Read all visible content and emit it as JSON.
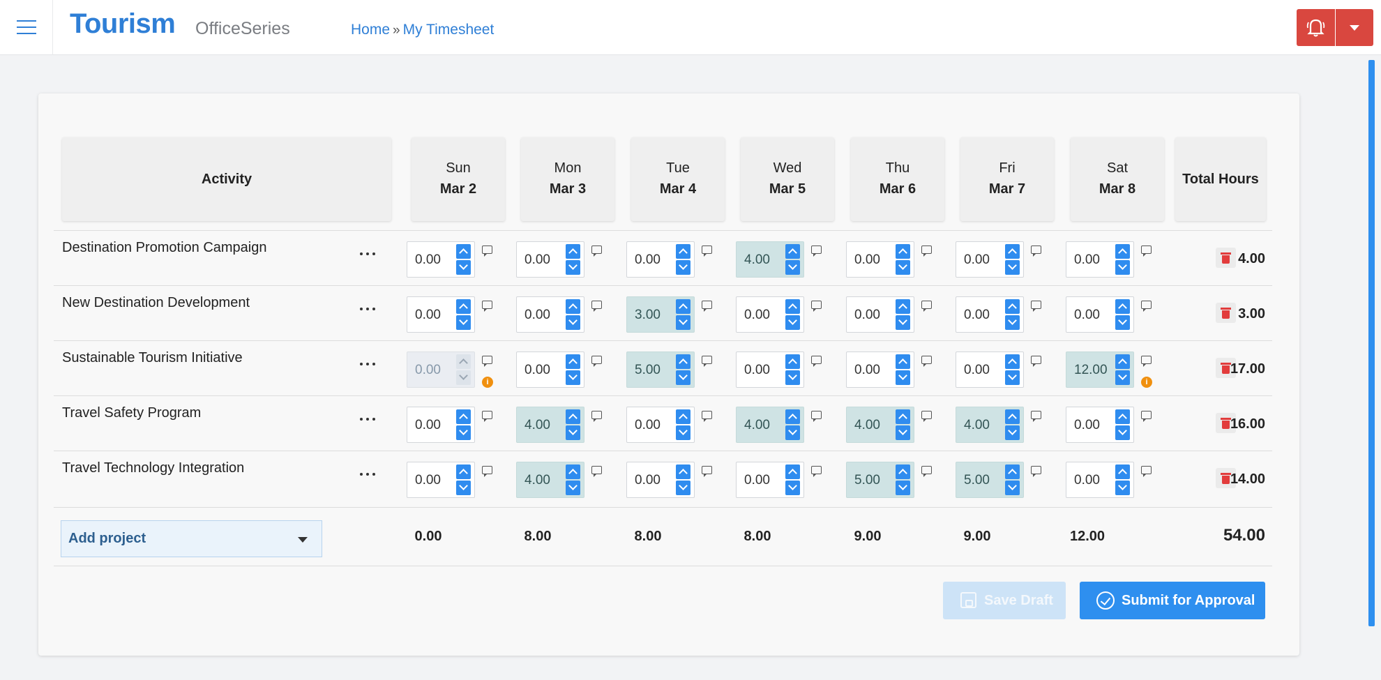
{
  "app": {
    "brand": "Tourism",
    "suite": "OfficeSeries"
  },
  "breadcrumb": {
    "home": "Home",
    "separator": "»",
    "current": "My Timesheet"
  },
  "icons": {
    "menu": "hamburger-icon",
    "alert": "bell-alert-icon",
    "comment": "comment-icon",
    "warning": "info-warning-icon",
    "delete": "trash-icon",
    "save": "floppy-disk-icon",
    "submit": "check-circle-icon"
  },
  "colors": {
    "brand": "#2f7fd6",
    "alert": "#d9473f",
    "primary": "#2e8fef",
    "highlight": "#cfe3e4",
    "delete": "#e23c3c",
    "warning": "#f0900f"
  },
  "table": {
    "activity_header": "Activity",
    "total_header": "Total Hours",
    "days": [
      {
        "day": "Sun",
        "date": "Mar 2"
      },
      {
        "day": "Mon",
        "date": "Mar 3"
      },
      {
        "day": "Tue",
        "date": "Mar 4"
      },
      {
        "day": "Wed",
        "date": "Mar 5"
      },
      {
        "day": "Thu",
        "date": "Mar 6"
      },
      {
        "day": "Fri",
        "date": "Mar 7"
      },
      {
        "day": "Sat",
        "date": "Mar 8"
      }
    ],
    "rows": [
      {
        "activity": "Destination Promotion Campaign",
        "hours": [
          "0.00",
          "0.00",
          "0.00",
          "4.00",
          "0.00",
          "0.00",
          "0.00"
        ],
        "highlighted": [
          false,
          false,
          false,
          true,
          false,
          false,
          false
        ],
        "disabled": [
          false,
          false,
          false,
          false,
          false,
          false,
          false
        ],
        "warnings": [
          false,
          false,
          false,
          false,
          false,
          false,
          false
        ],
        "total": "4.00"
      },
      {
        "activity": "New Destination Development",
        "hours": [
          "0.00",
          "0.00",
          "3.00",
          "0.00",
          "0.00",
          "0.00",
          "0.00"
        ],
        "highlighted": [
          false,
          false,
          true,
          false,
          false,
          false,
          false
        ],
        "disabled": [
          false,
          false,
          false,
          false,
          false,
          false,
          false
        ],
        "warnings": [
          false,
          false,
          false,
          false,
          false,
          false,
          false
        ],
        "total": "3.00"
      },
      {
        "activity": "Sustainable Tourism Initiative",
        "hours": [
          "0.00",
          "0.00",
          "5.00",
          "0.00",
          "0.00",
          "0.00",
          "12.00"
        ],
        "highlighted": [
          false,
          false,
          true,
          false,
          false,
          false,
          true
        ],
        "disabled": [
          true,
          false,
          false,
          false,
          false,
          false,
          false
        ],
        "warnings": [
          true,
          false,
          false,
          false,
          false,
          false,
          true
        ],
        "total": "17.00"
      },
      {
        "activity": "Travel Safety Program",
        "hours": [
          "0.00",
          "4.00",
          "0.00",
          "4.00",
          "4.00",
          "4.00",
          "0.00"
        ],
        "highlighted": [
          false,
          true,
          false,
          true,
          true,
          true,
          false
        ],
        "disabled": [
          false,
          false,
          false,
          false,
          false,
          false,
          false
        ],
        "warnings": [
          false,
          false,
          false,
          false,
          false,
          false,
          false
        ],
        "total": "16.00"
      },
      {
        "activity": "Travel Technology Integration",
        "hours": [
          "0.00",
          "4.00",
          "0.00",
          "0.00",
          "5.00",
          "5.00",
          "0.00"
        ],
        "highlighted": [
          false,
          true,
          false,
          false,
          true,
          true,
          false
        ],
        "disabled": [
          false,
          false,
          false,
          false,
          false,
          false,
          false
        ],
        "warnings": [
          false,
          false,
          false,
          false,
          false,
          false,
          false
        ],
        "total": "14.00"
      }
    ],
    "day_totals": [
      "0.00",
      "8.00",
      "8.00",
      "8.00",
      "9.00",
      "9.00",
      "12.00"
    ],
    "grand_total": "54.00",
    "add_project_label": "Add project"
  },
  "actions": {
    "save_draft": "Save Draft",
    "submit": "Submit for Approval"
  }
}
